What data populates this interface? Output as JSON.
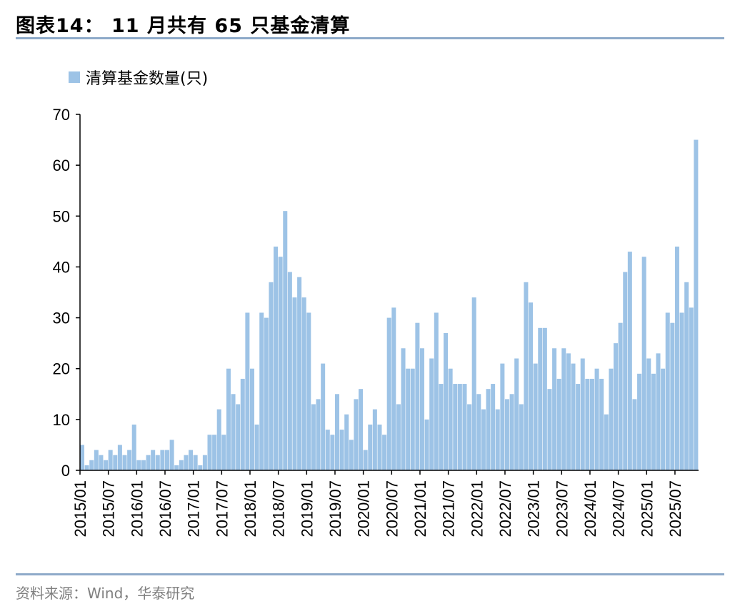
{
  "title": "图表14：   11 月共有 65 只基金清算",
  "source": "资料来源：Wind，华泰研究",
  "colors": {
    "bar": "#9dc3e6",
    "rule": "#8eaac9",
    "axis": "#000000"
  },
  "chart_data": {
    "type": "bar",
    "series": [
      {
        "name": "清算基金数量(只)",
        "color": "#9dc3e6"
      }
    ],
    "start": "2015/01",
    "categories": [
      "2015/01",
      "2015/02",
      "2015/03",
      "2015/04",
      "2015/05",
      "2015/06",
      "2015/07",
      "2015/08",
      "2015/09",
      "2015/10",
      "2015/11",
      "2015/12",
      "2016/01",
      "2016/02",
      "2016/03",
      "2016/04",
      "2016/05",
      "2016/06",
      "2016/07",
      "2016/08",
      "2016/09",
      "2016/10",
      "2016/11",
      "2016/12",
      "2017/01",
      "2017/02",
      "2017/03",
      "2017/04",
      "2017/05",
      "2017/06",
      "2017/07",
      "2017/08",
      "2017/09",
      "2017/10",
      "2017/11",
      "2017/12",
      "2018/01",
      "2018/02",
      "2018/03",
      "2018/04",
      "2018/05",
      "2018/06",
      "2018/07",
      "2018/08",
      "2018/09",
      "2018/10",
      "2018/11",
      "2018/12",
      "2019/01",
      "2019/02",
      "2019/03",
      "2019/04",
      "2019/05",
      "2019/06",
      "2019/07",
      "2019/08",
      "2019/09",
      "2019/10",
      "2019/11",
      "2019/12",
      "2020/01",
      "2020/02",
      "2020/03",
      "2020/04",
      "2020/05",
      "2020/06",
      "2020/07",
      "2020/08",
      "2020/09",
      "2020/10",
      "2020/11",
      "2020/12",
      "2021/01",
      "2021/02",
      "2021/03",
      "2021/04",
      "2021/05",
      "2021/06",
      "2021/07",
      "2021/08",
      "2021/09",
      "2021/10",
      "2021/11",
      "2021/12",
      "2022/01",
      "2022/02",
      "2022/03",
      "2022/04",
      "2022/05",
      "2022/06",
      "2022/07",
      "2022/08",
      "2022/09",
      "2022/10",
      "2022/11",
      "2022/12",
      "2023/01",
      "2023/02",
      "2023/03",
      "2023/04",
      "2023/05",
      "2023/06",
      "2023/07",
      "2023/08",
      "2023/09",
      "2023/10",
      "2023/11",
      "2023/12",
      "2024/01",
      "2024/02",
      "2024/03",
      "2024/04",
      "2024/05",
      "2024/06",
      "2024/07",
      "2024/08",
      "2024/09",
      "2024/10",
      "2024/11",
      "2024/12",
      "2025/01",
      "2025/02",
      "2025/03",
      "2025/04",
      "2025/05",
      "2025/06",
      "2025/07",
      "2025/08",
      "2025/09",
      "2025/10",
      "2025/11"
    ],
    "values": [
      5,
      1,
      2,
      4,
      3,
      2,
      4,
      3,
      5,
      3,
      4,
      9,
      2,
      2,
      3,
      4,
      3,
      4,
      4,
      6,
      1,
      2,
      3,
      4,
      3,
      1,
      3,
      7,
      7,
      12,
      7,
      20,
      15,
      13,
      18,
      31,
      20,
      9,
      31,
      30,
      37,
      44,
      42,
      51,
      39,
      34,
      38,
      34,
      31,
      13,
      14,
      21,
      8,
      7,
      15,
      8,
      11,
      6,
      14,
      16,
      4,
      9,
      12,
      9,
      7,
      30,
      32,
      13,
      24,
      20,
      20,
      29,
      24,
      10,
      22,
      31,
      17,
      27,
      20,
      17,
      17,
      17,
      13,
      34,
      15,
      12,
      16,
      17,
      12,
      21,
      14,
      15,
      22,
      13,
      37,
      33,
      21,
      28,
      28,
      16,
      24,
      18,
      24,
      23,
      21,
      17,
      22,
      18,
      18,
      20,
      18,
      11,
      20,
      25,
      29,
      39,
      43,
      14,
      19,
      42,
      22,
      19,
      23,
      20,
      31,
      29,
      44,
      31,
      37,
      32,
      65
    ],
    "tick_labels": [
      "2015/01",
      "2015/07",
      "2016/01",
      "2016/07",
      "2017/01",
      "2017/07",
      "2018/01",
      "2018/07",
      "2019/01",
      "2019/07",
      "2020/01",
      "2020/07",
      "2021/01",
      "2021/07",
      "2022/01",
      "2022/07",
      "2023/01",
      "2023/07",
      "2024/01",
      "2024/07",
      "2025/01",
      "2025/07"
    ],
    "yticks": [
      0,
      10,
      20,
      30,
      40,
      50,
      60,
      70
    ],
    "ylim": [
      0,
      70
    ],
    "xlabel": "",
    "ylabel": "",
    "legend_position": "top-left",
    "grid": false
  }
}
